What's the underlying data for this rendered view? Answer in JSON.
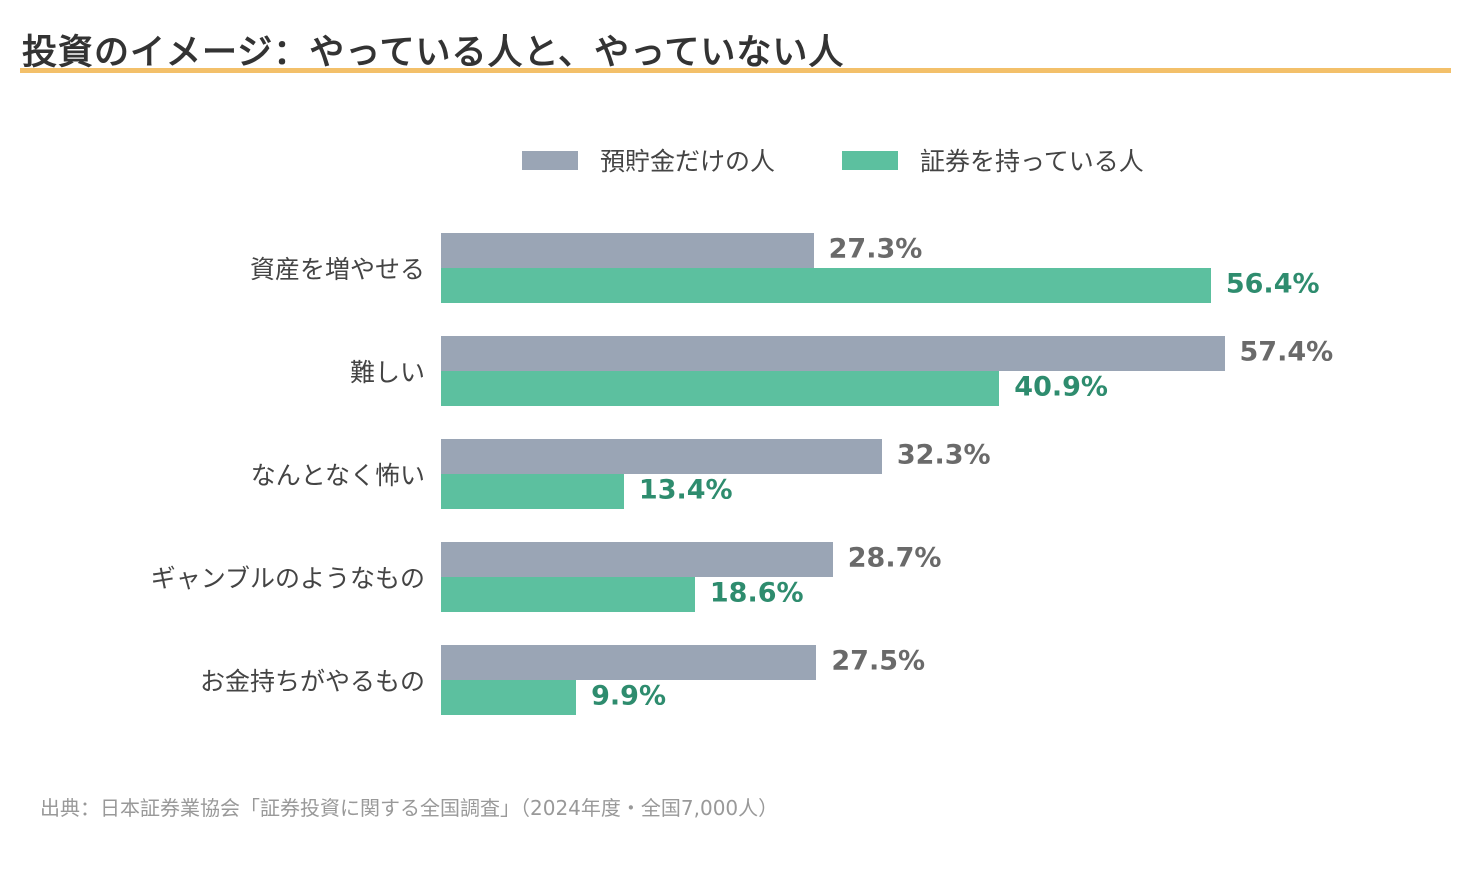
{
  "title": "投資のイメージ：やっている人と、やっていない人",
  "source": "出典：日本証券業協会「証券投資に関する全国調査」（2024年度・全国7,000人）",
  "colors": {
    "series_a": "#9aa5b5",
    "series_b": "#5cc09f",
    "label_a": "#6a6a6a",
    "label_b": "#2e8c6e",
    "title_rule": "#f3c06a"
  },
  "chart_data": {
    "type": "bar",
    "orientation": "horizontal",
    "categories": [
      "資産を増やせる",
      "難しい",
      "なんとなく怖い",
      "ギャンブルのようなもの",
      "お金持ちがやるもの"
    ],
    "series": [
      {
        "name": "預貯金だけの人",
        "values": [
          27.3,
          57.4,
          32.3,
          28.7,
          27.5
        ],
        "labels": [
          "27.3%",
          "57.4%",
          "32.3%",
          "28.7%",
          "27.5%"
        ]
      },
      {
        "name": "証券を持っている人",
        "values": [
          56.4,
          40.9,
          13.4,
          18.6,
          9.9
        ],
        "labels": [
          "56.4%",
          "40.9%",
          "13.4%",
          "18.6%",
          "9.9%"
        ]
      }
    ],
    "xlim": [
      0,
      100
    ],
    "grid": false,
    "legend_position": "top"
  }
}
